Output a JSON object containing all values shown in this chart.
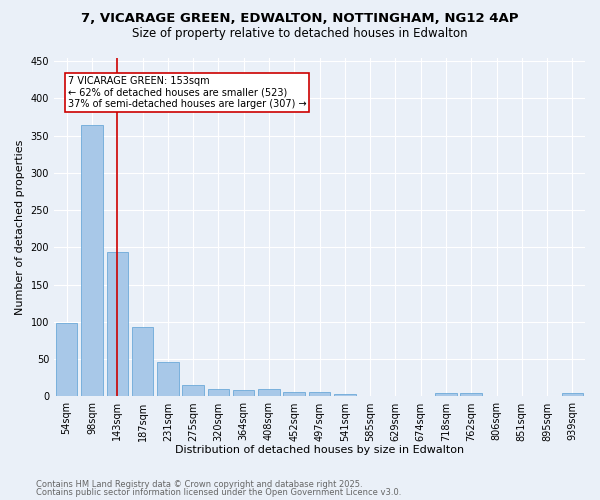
{
  "title_line1": "7, VICARAGE GREEN, EDWALTON, NOTTINGHAM, NG12 4AP",
  "title_line2": "Size of property relative to detached houses in Edwalton",
  "xlabel": "Distribution of detached houses by size in Edwalton",
  "ylabel": "Number of detached properties",
  "categories": [
    "54sqm",
    "98sqm",
    "143sqm",
    "187sqm",
    "231sqm",
    "275sqm",
    "320sqm",
    "364sqm",
    "408sqm",
    "452sqm",
    "497sqm",
    "541sqm",
    "585sqm",
    "629sqm",
    "674sqm",
    "718sqm",
    "762sqm",
    "806sqm",
    "851sqm",
    "895sqm",
    "939sqm"
  ],
  "values": [
    99,
    365,
    194,
    93,
    46,
    15,
    10,
    9,
    10,
    6,
    6,
    3,
    1,
    1,
    0,
    5,
    4,
    0,
    1,
    0,
    4
  ],
  "bar_color": "#a8c8e8",
  "bar_edge_color": "#5a9fd4",
  "vline_x_index": 2,
  "vline_color": "#cc0000",
  "vline_label": "7 VICARAGE GREEN: 153sqm",
  "annotation_line2": "← 62% of detached houses are smaller (523)",
  "annotation_line3": "37% of semi-detached houses are larger (307) →",
  "annotation_box_color": "#cc0000",
  "annotation_facecolor": "white",
  "ylim": [
    0,
    455
  ],
  "yticks": [
    0,
    50,
    100,
    150,
    200,
    250,
    300,
    350,
    400,
    450
  ],
  "footnote_line1": "Contains HM Land Registry data © Crown copyright and database right 2025.",
  "footnote_line2": "Contains public sector information licensed under the Open Government Licence v3.0.",
  "bg_color": "#eaf0f8",
  "plot_bg_color": "#eaf0f8",
  "title_fontsize": 9.5,
  "subtitle_fontsize": 8.5,
  "axis_label_fontsize": 8,
  "tick_fontsize": 7,
  "annotation_fontsize": 7,
  "footnote_fontsize": 6
}
